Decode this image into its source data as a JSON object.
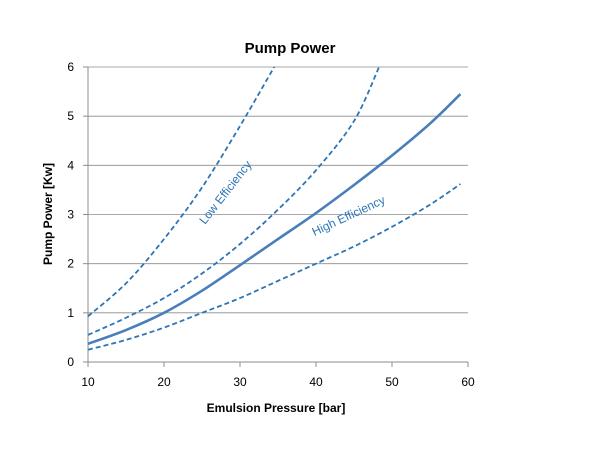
{
  "chart_data": {
    "type": "line",
    "title": "Pump Power",
    "xlabel": "Emulsion Pressure [bar]",
    "ylabel": "Pump Power [Kw]",
    "xlim": [
      10,
      60
    ],
    "ylim": [
      0,
      6
    ],
    "xticks": [
      10,
      20,
      30,
      40,
      50,
      60
    ],
    "yticks": [
      0,
      1,
      2,
      3,
      4,
      5,
      6
    ],
    "grid": "horizontal",
    "legend": "none",
    "colors": {
      "series": "#4a7ebb",
      "dashed": "#2e75b6",
      "annotation": "#2e75b6",
      "grid": "#8c8c8c"
    },
    "series": [
      {
        "style": "dashed",
        "x": [
          10,
          15,
          20,
          25,
          30,
          34.5
        ],
        "y": [
          0.93,
          1.6,
          2.5,
          3.55,
          4.8,
          6.0
        ]
      },
      {
        "style": "dashed",
        "x": [
          10,
          15,
          20,
          25,
          30,
          35,
          40,
          45,
          48.3
        ],
        "y": [
          0.55,
          0.9,
          1.3,
          1.8,
          2.4,
          3.1,
          3.9,
          4.9,
          6.0
        ]
      },
      {
        "style": "solid",
        "x": [
          10,
          15,
          20,
          25,
          30,
          35,
          40,
          45,
          50,
          55,
          59
        ],
        "y": [
          0.37,
          0.65,
          1.0,
          1.45,
          1.97,
          2.5,
          3.03,
          3.6,
          4.2,
          4.85,
          5.45
        ]
      },
      {
        "style": "dashed",
        "x": [
          10,
          15,
          20,
          25,
          30,
          35,
          40,
          45,
          50,
          55,
          59
        ],
        "y": [
          0.25,
          0.45,
          0.7,
          1.0,
          1.3,
          1.65,
          2.0,
          2.35,
          2.75,
          3.2,
          3.62
        ]
      }
    ],
    "annotations": [
      {
        "text": "Low Efficiency",
        "x": 28.5,
        "y": 3.4,
        "angle": -52
      },
      {
        "text": "High Efficiency",
        "x": 44.5,
        "y": 2.9,
        "angle": -25
      }
    ]
  }
}
